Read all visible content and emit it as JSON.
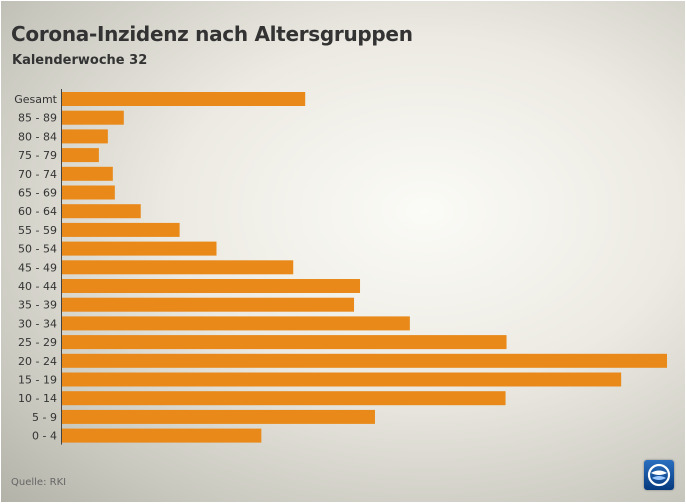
{
  "chart_data": {
    "type": "bar",
    "orientation": "horizontal",
    "title": "Corona-Inzidenz nach Altersgruppen",
    "subtitle": "Kalenderwoche 32",
    "categories": [
      "Gesamt",
      "85 - 89",
      "80 - 84",
      "75 - 79",
      "70 - 74",
      "65 - 69",
      "60 - 64",
      "55 - 59",
      "50 - 54",
      "45 - 49",
      "40 - 44",
      "35 - 39",
      "30 - 34",
      "25 - 29",
      "20 - 24",
      "15 - 19",
      "10 - 14",
      "5 - 9",
      "0 - 4"
    ],
    "values": [
      244,
      62,
      46,
      37,
      51,
      53,
      79,
      118,
      155,
      232,
      299,
      293,
      349,
      446,
      607,
      561,
      445,
      314,
      200
    ],
    "xlim": [
      0,
      610
    ],
    "grid": false,
    "bar_color": "#e8891a"
  },
  "footer": {
    "source": "Quelle: RKI"
  },
  "logo": {
    "icon": "tagesschau-logo-icon",
    "bg_color": "#0a4a9c"
  }
}
